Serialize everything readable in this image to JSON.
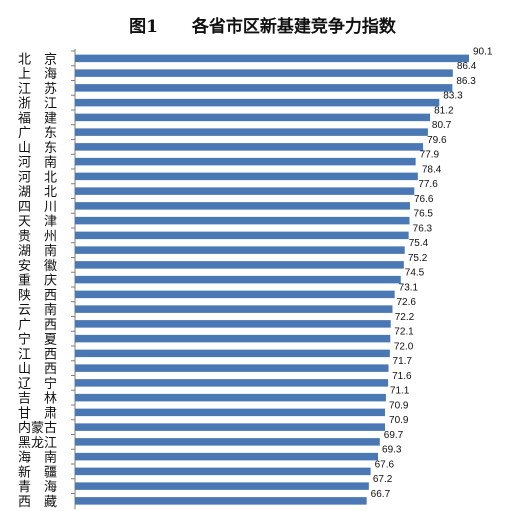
{
  "chart_data": {
    "type": "bar",
    "orientation": "horizontal",
    "title": "图1　　各省市区新基建竞争力指数",
    "bar_color": "#4a78b4",
    "categories": [
      "北　京",
      "上　海",
      "江　苏",
      "浙　江",
      "福　建",
      "广　东",
      "山　东",
      "河　南",
      "河　北",
      "湖　北",
      "四　川",
      "天　津",
      "贵　州",
      "湖　南",
      "安　徽",
      "重　庆",
      "陕　西",
      "云　南",
      "广　西",
      "宁　夏",
      "江　西",
      "山　西",
      "辽　宁",
      "吉　林",
      "甘　肃",
      "内蒙古",
      "黑龙江",
      "海　南",
      "新　疆",
      "青　海",
      "西　藏"
    ],
    "values": [
      90.1,
      86.4,
      86.3,
      83.3,
      81.2,
      80.7,
      79.6,
      77.9,
      78.4,
      77.6,
      76.6,
      76.5,
      76.3,
      75.4,
      75.2,
      74.5,
      73.1,
      72.6,
      72.2,
      72.1,
      72.0,
      71.7,
      71.6,
      71.1,
      70.9,
      70.9,
      69.7,
      69.3,
      67.6,
      67.2,
      66.7
    ],
    "value_labels": [
      "90.1",
      "86.4",
      "86.3",
      "83.3",
      "81.2",
      "80.7",
      "79.6",
      "77.9",
      "78.4",
      "77.6",
      "76.6",
      "76.5",
      "76.3",
      "75.4",
      "75.2",
      "74.5",
      "73.1",
      "72.6",
      "72.2",
      "72.1",
      "72.0",
      "71.7",
      "71.6",
      "71.1",
      "70.9",
      "70.9",
      "69.7",
      "69.3",
      "67.6",
      "67.2",
      "66.7"
    ],
    "xlim": [
      0,
      90.1
    ],
    "grid": false,
    "legend": "none"
  }
}
